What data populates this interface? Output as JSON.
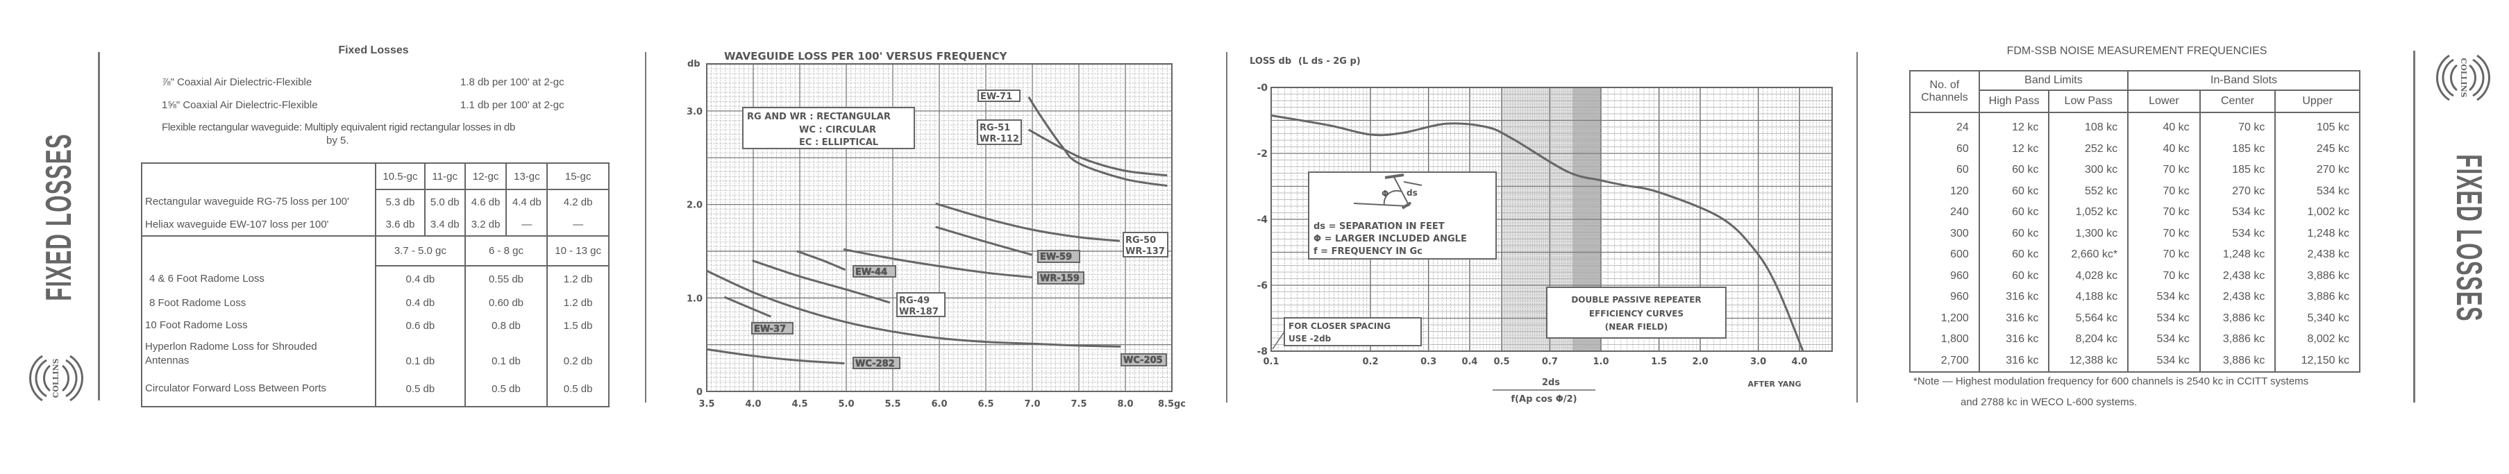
{
  "left_panel": {
    "side_label": "FIXED LOSSES",
    "logo_text": "COLLINS",
    "title": "Fixed Losses",
    "coax_lines": [
      {
        "label": "⅞\" Coaxial Air Dielectric-Flexible",
        "value": "1.8 db per 100' at 2-gc"
      },
      {
        "label": "1⅝\" Coaxial Air Dielectric-Flexible",
        "value": "1.1 db per 100' at 2-gc"
      }
    ],
    "flex_note": "Flexible rectangular waveguide: Multiply equivalent rigid rectangular losses in db",
    "flex_note_2": "by 5.",
    "waveguide_table": {
      "headers": [
        "10.5-gc",
        "11-gc",
        "12-gc",
        "13-gc",
        "15-gc"
      ],
      "rows": [
        {
          "label": "Rectangular waveguide RG-75 loss per 100'",
          "values": [
            "5.3 db",
            "5.0 db",
            "4.6 db",
            "4.4 db",
            "4.2 db"
          ]
        },
        {
          "label": "Heliax waveguide EW-107 loss per 100'",
          "values": [
            "3.6 db",
            "3.4 db",
            "3.2 db",
            "—",
            "—"
          ]
        }
      ]
    },
    "radome_table": {
      "headers": [
        "3.7 - 5.0 gc",
        "6 - 8 gc",
        "10 - 13 gc"
      ],
      "rows": [
        {
          "label": "4 & 6 Foot Radome Loss",
          "values": [
            "0.4 db",
            "0.55 db",
            "1.2 db"
          ]
        },
        {
          "label": "8 Foot Radome Loss",
          "values": [
            "0.4 db",
            "0.60 db",
            "1.2 db"
          ]
        },
        {
          "label": "10 Foot Radome Loss",
          "values": [
            "0.6 db",
            "0.8 db",
            "1.5 db"
          ]
        },
        {
          "label": "Hyperlon Radome Loss for Shrouded Antennas",
          "values": [
            "0.1 db",
            "0.1 db",
            "0.2 db"
          ]
        },
        {
          "label": "Circulator Forward Loss Between Ports",
          "values": [
            "0.5 db",
            "0.5 db",
            "0.5 db"
          ]
        }
      ]
    }
  },
  "chart_data": [
    {
      "type": "line",
      "title": "WAVEGUIDE LOSS PER 100' VERSUS FREQUENCY",
      "ylabel": "db",
      "xlim": [
        3.5,
        8.5
      ],
      "ylim": [
        0,
        3.5
      ],
      "grid": true,
      "xticks": [
        3.5,
        4.0,
        4.5,
        5.0,
        5.5,
        6.0,
        6.5,
        7.0,
        7.5,
        8.0,
        8.5
      ],
      "xtick_labels": [
        "3.5",
        "4.0",
        "4.5",
        "5.0",
        "5.5",
        "6.0",
        "6.5",
        "7.0",
        "7.5",
        "8.0",
        "8.5gc"
      ],
      "yticks": [
        0,
        1.0,
        2.0,
        3.0
      ],
      "ytick_labels": [
        "0",
        "1.0",
        "2.0",
        "3.0"
      ],
      "legend": [
        "RG AND WR : RECTANGULAR",
        "WC : CIRCULAR",
        "EC : ELLIPTICAL"
      ],
      "series": [
        {
          "name": "EW-71",
          "points": [
            [
              6.96,
              3.15
            ],
            [
              7.1,
              2.93
            ],
            [
              7.32,
              2.62
            ],
            [
              7.5,
              2.44
            ],
            [
              8.0,
              2.27
            ],
            [
              8.45,
              2.2
            ]
          ]
        },
        {
          "name": "RG-51 WR-112",
          "points": [
            [
              6.96,
              2.8
            ],
            [
              7.32,
              2.6
            ],
            [
              7.6,
              2.47
            ],
            [
              8.0,
              2.36
            ],
            [
              8.45,
              2.31
            ]
          ]
        },
        {
          "name": "RG-50 WR-137",
          "points": [
            [
              5.96,
              2.01
            ],
            [
              6.5,
              1.85
            ],
            [
              7.0,
              1.73
            ],
            [
              7.5,
              1.65
            ],
            [
              7.94,
              1.61
            ]
          ]
        },
        {
          "name": "EW-59",
          "points": [
            [
              5.96,
              1.76
            ],
            [
              6.5,
              1.6
            ],
            [
              7.0,
              1.46
            ]
          ]
        },
        {
          "name": "WR-159",
          "points": [
            [
              4.97,
              1.52
            ],
            [
              5.5,
              1.42
            ],
            [
              6.0,
              1.34
            ],
            [
              6.5,
              1.27
            ],
            [
              7.0,
              1.22
            ]
          ]
        },
        {
          "name": "EW-44",
          "points": [
            [
              4.47,
              1.5
            ],
            [
              4.75,
              1.4
            ],
            [
              4.99,
              1.3
            ]
          ]
        },
        {
          "name": "RG-49 WR-187",
          "points": [
            [
              3.99,
              1.4
            ],
            [
              4.5,
              1.23
            ],
            [
              5.0,
              1.09
            ],
            [
              5.47,
              0.95
            ]
          ]
        },
        {
          "name": "EW-37",
          "points": [
            [
              3.69,
              1.01
            ],
            [
              3.95,
              0.9
            ],
            [
              4.19,
              0.8
            ]
          ]
        },
        {
          "name": "WC-205",
          "points": [
            [
              3.5,
              1.29
            ],
            [
              4.0,
              1.06
            ],
            [
              4.5,
              0.88
            ],
            [
              5.0,
              0.74
            ],
            [
              5.5,
              0.64
            ],
            [
              6.0,
              0.57
            ],
            [
              6.5,
              0.53
            ],
            [
              7.0,
              0.51
            ],
            [
              7.5,
              0.49
            ],
            [
              7.95,
              0.48
            ]
          ]
        },
        {
          "name": "WC-282",
          "points": [
            [
              3.5,
              0.45
            ],
            [
              4.0,
              0.38
            ],
            [
              4.5,
              0.33
            ],
            [
              4.98,
              0.3
            ]
          ]
        }
      ]
    },
    {
      "type": "line",
      "title": "",
      "ylabel": "LOSS db",
      "ylabel_formula": "(L ds - 2G p)",
      "xlabel_numerator": "2ds",
      "xlabel_denominator": "f(Ap cos Φ/2)",
      "xscale": "log",
      "xlim": [
        0.1,
        5.0
      ],
      "ylim": [
        -8,
        0
      ],
      "grid": true,
      "xticks": [
        0.1,
        0.2,
        0.3,
        0.4,
        0.5,
        0.7,
        1.0,
        1.5,
        2.0,
        3.0,
        4.0
      ],
      "xtick_labels": [
        "0.1",
        "0.2",
        "0.3",
        "0.4",
        "0.5",
        "0.7",
        "1.0",
        "1.5",
        "2.0",
        "3.0",
        "4.0"
      ],
      "yticks": [
        0,
        -2,
        -4,
        -6,
        -8
      ],
      "ytick_labels": [
        "-0",
        "-2",
        "-4",
        "-6",
        "-8"
      ],
      "legend": [
        "ds = SEPARATION IN FEET",
        "Φ = LARGER INCLUDED ANGLE",
        "f = FREQUENCY IN Gc"
      ],
      "annotations": {
        "closer_spacing": [
          "FOR CLOSER SPACING",
          "USE -2db"
        ],
        "caption": [
          "DOUBLE PASSIVE REPEATER",
          "EFFICIENCY CURVES",
          "(NEAR FIELD)"
        ],
        "credit": "AFTER YANG",
        "diagram_label_angle": "Φ",
        "diagram_label_sep": "ds"
      },
      "series": [
        {
          "points": [
            [
              0.1,
              -0.85
            ],
            [
              0.15,
              -1.15
            ],
            [
              0.2,
              -1.43
            ],
            [
              0.25,
              -1.38
            ],
            [
              0.34,
              -1.1
            ],
            [
              0.45,
              -1.2
            ],
            [
              0.54,
              -1.56
            ],
            [
              0.79,
              -2.55
            ],
            [
              1.0,
              -2.82
            ],
            [
              1.18,
              -2.97
            ],
            [
              1.5,
              -3.18
            ],
            [
              2.3,
              -3.94
            ],
            [
              2.9,
              -4.88
            ],
            [
              3.4,
              -6.0
            ],
            [
              4.1,
              -8.0
            ]
          ]
        }
      ]
    }
  ],
  "right_panel": {
    "side_label": "FIXED LOSSES",
    "logo_text": "COLLINS",
    "title": "FDM-SSB NOISE MEASUREMENT FREQUENCIES",
    "group_headers": {
      "channels": "No. of Channels",
      "band_limits": "Band Limits",
      "in_band": "In-Band Slots"
    },
    "sub_headers": [
      "High Pass",
      "Low Pass",
      "Lower",
      "Center",
      "Upper"
    ],
    "rows": [
      [
        "24",
        "12 kc",
        "108 kc",
        "40 kc",
        "70 kc",
        "105 kc"
      ],
      [
        "60",
        "12 kc",
        "252 kc",
        "40 kc",
        "185 kc",
        "245 kc"
      ],
      [
        "60",
        "60 kc",
        "300 kc",
        "70 kc",
        "185 kc",
        "270 kc"
      ],
      [
        "120",
        "60 kc",
        "552 kc",
        "70 kc",
        "270 kc",
        "534 kc"
      ],
      [
        "240",
        "60 kc",
        "1,052 kc",
        "70 kc",
        "534 kc",
        "1,002 kc"
      ],
      [
        "300",
        "60 kc",
        "1,300 kc",
        "70 kc",
        "534 kc",
        "1,248 kc"
      ],
      [
        "600",
        "60 kc",
        "2,660 kc*",
        "70 kc",
        "1,248 kc",
        "2,438 kc"
      ],
      [
        "960",
        "60 kc",
        "4,028 kc",
        "70 kc",
        "2,438 kc",
        "3,886 kc"
      ],
      [
        "960",
        "316 kc",
        "4,188 kc",
        "534 kc",
        "2,438 kc",
        "3,886 kc"
      ],
      [
        "1,200",
        "316 kc",
        "5,564 kc",
        "534 kc",
        "3,886 kc",
        "5,340 kc"
      ],
      [
        "1,800",
        "316 kc",
        "8,204 kc",
        "534 kc",
        "3,886 kc",
        "8,002 kc"
      ],
      [
        "2,700",
        "316 kc",
        "12,388 kc",
        "534 kc",
        "3,886 kc",
        "12,150 kc"
      ]
    ],
    "note_1": "*Note — Highest modulation frequency for 600 channels is 2540 kc in CCITT systems",
    "note_2": "and 2788 kc in WECO L-600 systems."
  }
}
